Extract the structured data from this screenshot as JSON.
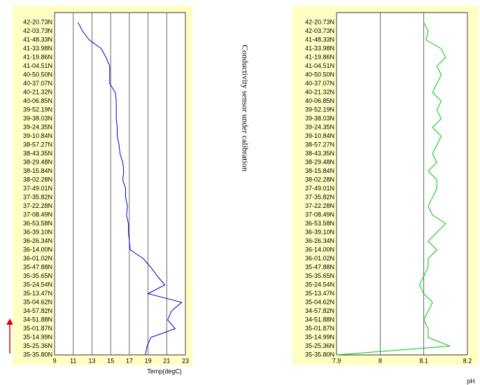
{
  "annotation": "Conductivity sensor under calibration",
  "chart_data": [
    {
      "type": "line",
      "xlabel": "Temp(degC)",
      "color": "#0000c8",
      "categories": [
        "42-20.73N",
        "42-03.73N",
        "41-48.33N",
        "41-33.98N",
        "41-19.86N",
        "41-04.51N",
        "40-50.50N",
        "40-37.07N",
        "40-21.32N",
        "40-06.85N",
        "39-52.19N",
        "39-38.03N",
        "39-24.35N",
        "39-10.84N",
        "38-57.27N",
        "38-43.35N",
        "38-29.48N",
        "38-15.84N",
        "38-02.28N",
        "37-49.01N",
        "37-35.82N",
        "37-22.28N",
        "37-08.49N",
        "36-53.58N",
        "36-39.10N",
        "36-26.34N",
        "36-14.00N",
        "36-01.02N",
        "35-47.88N",
        "35-35.65N",
        "35-24.54N",
        "35-13.47N",
        "35-04.62N",
        "34-57.82N",
        "34-51.88N",
        "35-01.87N",
        "35-14.99N",
        "35-25.36N",
        "35-35.80N"
      ],
      "values": [
        11.5,
        12.0,
        12.7,
        14.0,
        14.5,
        14.9,
        14.9,
        14.9,
        15.5,
        15.6,
        15.6,
        15.6,
        15.7,
        15.7,
        15.9,
        16.0,
        16.3,
        16.4,
        16.3,
        16.6,
        16.6,
        16.8,
        16.7,
        16.9,
        16.9,
        17.0,
        17.1,
        18.5,
        19.3,
        20.0,
        20.8,
        19.0,
        22.6,
        21.5,
        21.1,
        21.9,
        19.3,
        18.9,
        18.7
      ],
      "xlim": [
        9,
        23
      ],
      "xticks": [
        9,
        11,
        13,
        15,
        17,
        19,
        21,
        23
      ],
      "grid": true
    },
    {
      "type": "line",
      "xlabel": "pH",
      "color": "#00c800",
      "categories": [
        "42-20.73N",
        "42-03.73N",
        "41-48.33N",
        "41-33.98N",
        "41-19.86N",
        "41-04.51N",
        "40-50.50N",
        "40-37.07N",
        "40-21.32N",
        "40-06.85N",
        "39-52.19N",
        "39-38.03N",
        "39-24.35N",
        "39-10.84N",
        "38-57.27N",
        "38-43.35N",
        "38-29.48N",
        "38-15.84N",
        "38-02.28N",
        "37-49.01N",
        "37-35.82N",
        "37-22.28N",
        "37-08.49N",
        "36-53.58N",
        "36-39.10N",
        "36-26.34N",
        "36-14.00N",
        "36-01.02N",
        "35-47.88N",
        "35-35.65N",
        "35-24.54N",
        "35-13.47N",
        "35-04.62N",
        "34-57.82N",
        "34-51.88N",
        "35-01.87N",
        "35-14.99N",
        "35-25.36N",
        "35-35.80N"
      ],
      "values": [
        8.1,
        8.11,
        8.105,
        8.14,
        8.15,
        8.13,
        8.14,
        8.13,
        8.12,
        8.14,
        8.13,
        8.14,
        8.12,
        8.14,
        8.13,
        8.12,
        8.13,
        8.11,
        8.13,
        8.13,
        8.12,
        8.11,
        8.12,
        8.15,
        8.13,
        8.11,
        8.13,
        8.11,
        8.11,
        8.1,
        8.09,
        8.1,
        8.12,
        8.11,
        8.1,
        8.11,
        8.11,
        8.16,
        7.9
      ],
      "xlim": [
        7.9,
        8.2
      ],
      "xticks": [
        7.9,
        8,
        8.1,
        8.2
      ],
      "grid": true
    }
  ]
}
